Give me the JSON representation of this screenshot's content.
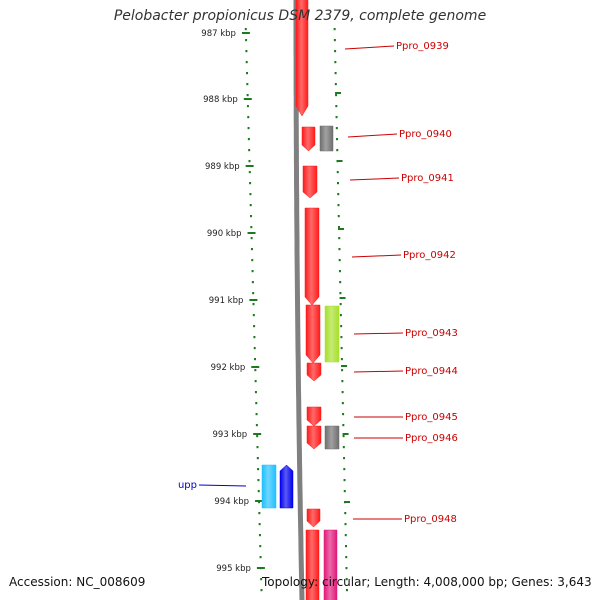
{
  "title": "Pelobacter propionicus DSM 2379, complete genome",
  "accession": "Accession: NC_008609",
  "topology": "Topology: circular; Length: 4,008,000 bp; Genes: 3,643",
  "colors": {
    "backbone": "#808080",
    "tick": "#1f7a1f",
    "gene_label_red": "#cc0000",
    "gene_label_blue": "#0000cc",
    "leader_red": "#cc0000",
    "leader_blue": "#0000cc"
  },
  "kbp_ticks": [
    "987 kbp",
    "988 kbp",
    "989 kbp",
    "990 kbp",
    "991 kbp",
    "992 kbp",
    "993 kbp",
    "994 kbp",
    "995 kbp"
  ],
  "gene_labels": [
    {
      "text": "Ppro_0939",
      "color": "red"
    },
    {
      "text": "Ppro_0940",
      "color": "red"
    },
    {
      "text": "Ppro_0941",
      "color": "red"
    },
    {
      "text": "Ppro_0942",
      "color": "red"
    },
    {
      "text": "Ppro_0943",
      "color": "red"
    },
    {
      "text": "Ppro_0944",
      "color": "red"
    },
    {
      "text": "Ppro_0945",
      "color": "red"
    },
    {
      "text": "Ppro_0946",
      "color": "red"
    },
    {
      "text": "upp",
      "color": "blue"
    },
    {
      "text": "Ppro_0948",
      "color": "red"
    }
  ],
  "features": [
    {
      "name": "Ppro_0939",
      "fill": "#ff1a1a",
      "strand": "forward"
    },
    {
      "name": "Ppro_0940",
      "fill": "#ff1a1a",
      "strand": "forward"
    },
    {
      "name": "Ppro_0940-partner",
      "fill": "#6e6e6e",
      "strand": "none"
    },
    {
      "name": "Ppro_0941",
      "fill": "#ff1a1a",
      "strand": "forward"
    },
    {
      "name": "Ppro_0942",
      "fill": "#ff1a1a",
      "strand": "forward"
    },
    {
      "name": "Ppro_0943",
      "fill": "#ff1a1a",
      "strand": "forward"
    },
    {
      "name": "Ppro_0943-partner",
      "fill": "#a6e02a",
      "strand": "none"
    },
    {
      "name": "Ppro_0944",
      "fill": "#ff1a1a",
      "strand": "forward"
    },
    {
      "name": "Ppro_0945",
      "fill": "#ff1a1a",
      "strand": "forward"
    },
    {
      "name": "Ppro_0946",
      "fill": "#ff1a1a",
      "strand": "forward"
    },
    {
      "name": "Ppro_0946-partner",
      "fill": "#6e6e6e",
      "strand": "none"
    },
    {
      "name": "upp-cyan",
      "fill": "#1fc0ff",
      "strand": "none"
    },
    {
      "name": "upp",
      "fill": "#0000ee",
      "strand": "reverse"
    },
    {
      "name": "Ppro_0948",
      "fill": "#ff1a1a",
      "strand": "forward"
    },
    {
      "name": "Ppro_0949",
      "fill": "#ff1a1a",
      "strand": "forward"
    },
    {
      "name": "Ppro_0949-partner",
      "fill": "#e0197a",
      "strand": "none"
    }
  ]
}
